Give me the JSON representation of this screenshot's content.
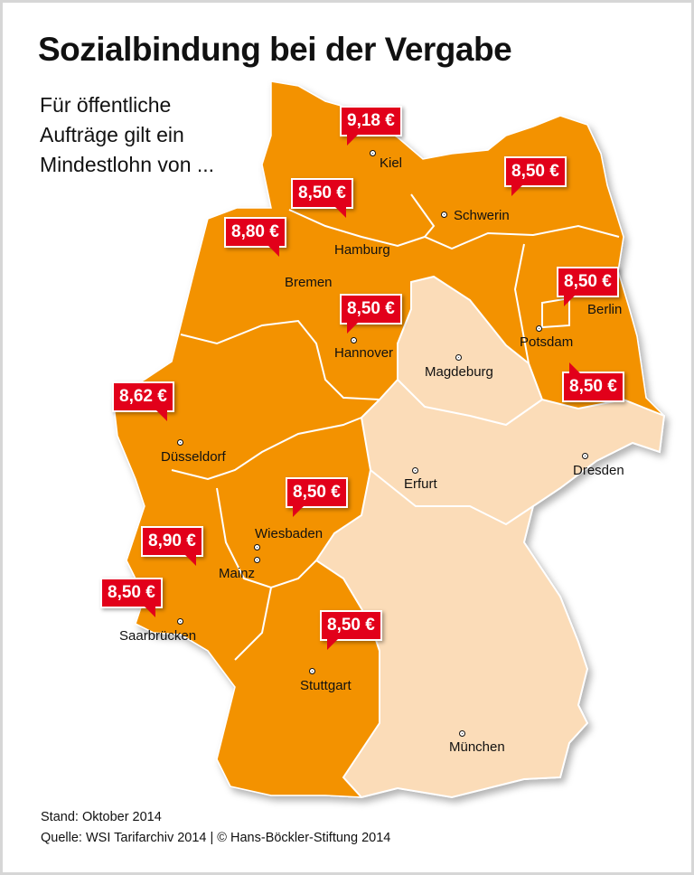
{
  "title": "Sozialbindung bei der Vergabe",
  "subtitle": [
    "Für öffentliche",
    "Aufträge gilt ein",
    "Mindestlohn von ..."
  ],
  "colors": {
    "covered": "#f39200",
    "not_covered": "#fbdcb8",
    "tag": "#e2001a"
  },
  "cities": {
    "kiel": "Kiel",
    "schwerin": "Schwerin",
    "hamburg": "Hamburg",
    "bremen": "Bremen",
    "hannover": "Hannover",
    "magdeburg": "Magdeburg",
    "berlin": "Berlin",
    "potsdam": "Potsdam",
    "duesseldorf": "Düsseldorf",
    "erfurt": "Erfurt",
    "dresden": "Dresden",
    "wiesbaden": "Wiesbaden",
    "mainz": "Mainz",
    "saarbruecken": "Saarbrücken",
    "stuttgart": "Stuttgart",
    "muenchen": "München"
  },
  "wages": {
    "schleswig_holstein": "9,18 €",
    "mecklenburg_vorpommern": "8,50 €",
    "hamburg": "8,50 €",
    "bremen": "8,80 €",
    "berlin": "8,50 €",
    "niedersachsen": "8,50 €",
    "brandenburg": "8,50 €",
    "nordrhein_westfalen": "8,62 €",
    "hessen": "8,50 €",
    "rheinland_pfalz": "8,90 €",
    "saarland": "8,50 €",
    "baden_wuerttemberg": "8,50 €"
  },
  "footer": {
    "stand": "Stand: Oktober 2014",
    "source": "Quelle: WSI Tarifarchiv 2014 | © Hans-Böckler-Stiftung 2014"
  }
}
